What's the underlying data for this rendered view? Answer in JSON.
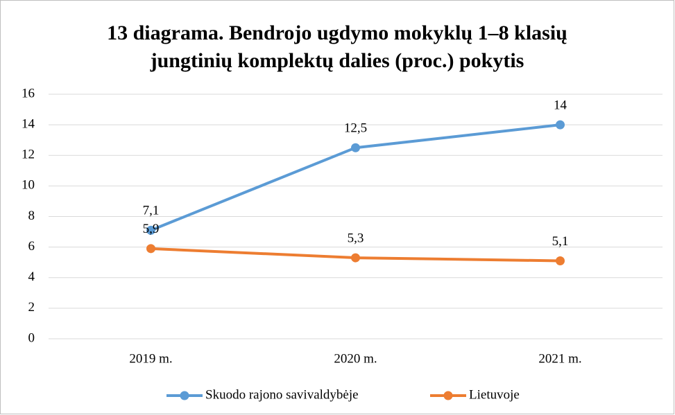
{
  "chart_data": {
    "type": "line",
    "title": [
      "13 diagrama. Bendrojo ugdymo mokyklų 1–8 klasių",
      "jungtinių komplektų dalies (proc.) pokytis"
    ],
    "categories": [
      "2019 m.",
      "2020 m.",
      "2021 m."
    ],
    "series": [
      {
        "name": "Skuodo rajono savivaldybėje",
        "color": "#5b9bd5",
        "values": [
          7.1,
          12.5,
          14
        ],
        "value_labels": [
          "7,1",
          "12,5",
          "14"
        ]
      },
      {
        "name": "Lietuvoje",
        "color": "#ed7d31",
        "values": [
          5.9,
          5.3,
          5.1
        ],
        "value_labels": [
          "5,9",
          "5,3",
          "5,1"
        ]
      }
    ],
    "ylim": [
      0,
      16
    ],
    "yticks": [
      0,
      2,
      4,
      6,
      8,
      10,
      12,
      14,
      16
    ],
    "grid": true,
    "legend": "bottom"
  }
}
